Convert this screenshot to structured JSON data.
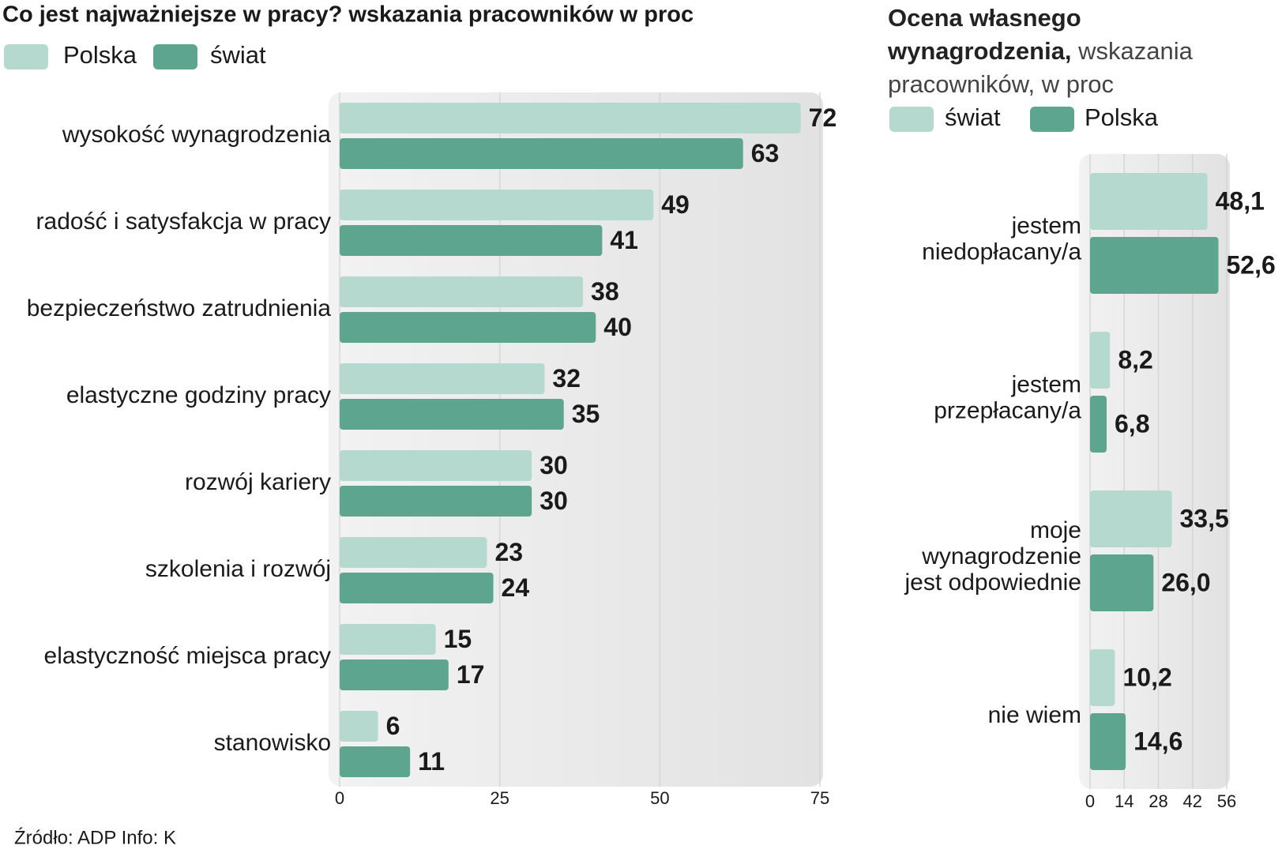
{
  "chart_data": [
    {
      "type": "bar",
      "orientation": "horizontal",
      "title": "Co jest najważniejsze w pracy? wskazania pracowników w proc",
      "categories": [
        "wysokość wynagrodzenia",
        "radość i satysfakcja w pracy",
        "bezpieczeństwo zatrudnienia",
        "elastyczne godziny pracy",
        "rozwój kariery",
        "szkolenia i rozwój",
        "elastyczność miejsca pracy",
        "stanowisko"
      ],
      "series": [
        {
          "name": "Polska",
          "color": "#b5d9cf",
          "values": [
            72,
            49,
            38,
            32,
            30,
            23,
            15,
            6
          ]
        },
        {
          "name": "świat",
          "color": "#5ea58f",
          "values": [
            63,
            41,
            40,
            35,
            30,
            24,
            17,
            11
          ]
        }
      ],
      "xlim": [
        0,
        75
      ],
      "xticks": [
        0,
        25,
        50,
        75
      ],
      "grid": true
    },
    {
      "type": "bar",
      "orientation": "horizontal",
      "title": "Ocena własnego wynagrodzenia,",
      "subtitle": "wskazania pracowników, w proc",
      "categories": [
        "jestem\nniedopłacany/a",
        "jestem\nprzepłacany/a",
        "moje\nwynagrodzenie\njest odpowiednie",
        "nie wiem"
      ],
      "series": [
        {
          "name": "świat",
          "color": "#b5d9cf",
          "values": [
            48.1,
            8.2,
            33.5,
            10.2
          ],
          "value_labels": [
            "48,1",
            "8,2",
            "33,5",
            "10,2"
          ]
        },
        {
          "name": "Polska",
          "color": "#5ea58f",
          "values": [
            52.6,
            6.8,
            26.0,
            14.6
          ],
          "value_labels": [
            "52,6",
            "6,8",
            "26,0",
            "14,6"
          ]
        }
      ],
      "xlim": [
        0,
        56
      ],
      "xticks": [
        0,
        14,
        28,
        42,
        56
      ],
      "grid": true
    }
  ],
  "source": "Źródło: ADP  Info: K"
}
